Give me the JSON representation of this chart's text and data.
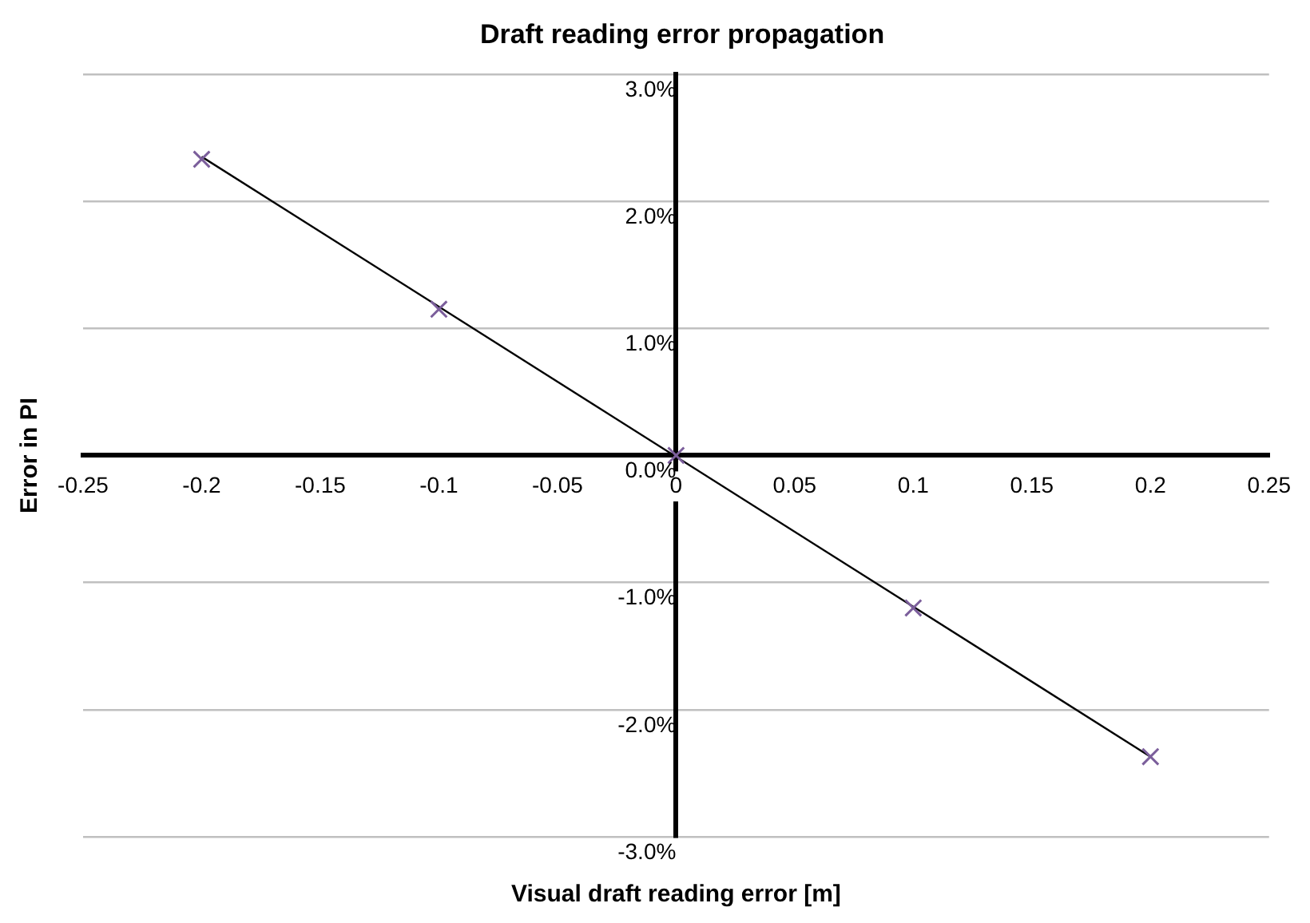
{
  "chart_data": {
    "type": "scatter",
    "title": "Draft reading error propagation",
    "xlabel": "Visual draft reading error [m]",
    "ylabel": "Error in PI",
    "x": [
      -0.2,
      -0.1,
      0,
      0.1,
      0.2
    ],
    "series": [
      {
        "type": "scatter",
        "color": "#7b5e9b",
        "values": [
          2.33,
          1.15,
          0,
          -1.2,
          -2.37
        ]
      },
      {
        "type": "line",
        "color": "#000000",
        "x": [
          -0.2,
          0.2
        ],
        "values": [
          2.35,
          -2.37
        ],
        "marker": "none"
      }
    ],
    "xlim": [
      -0.25,
      0.25
    ],
    "xticks": [
      -0.25,
      -0.2,
      -0.15,
      -0.1,
      -0.05,
      0,
      0.05,
      0.1,
      0.15,
      0.2,
      0.25
    ],
    "ylim": [
      -3,
      3
    ],
    "yticks": [
      {
        "value": -3,
        "label": "-3.0%"
      },
      {
        "value": -2,
        "label": "-2.0%"
      },
      {
        "value": -1,
        "label": "-1.0%"
      },
      {
        "value": 0,
        "label": "0.0%"
      },
      {
        "value": 1,
        "label": "1.0%"
      },
      {
        "value": 2,
        "label": "2.0%"
      },
      {
        "value": 3,
        "label": "3.0%"
      }
    ],
    "grid": "y",
    "marker": "cross",
    "legend": false
  }
}
